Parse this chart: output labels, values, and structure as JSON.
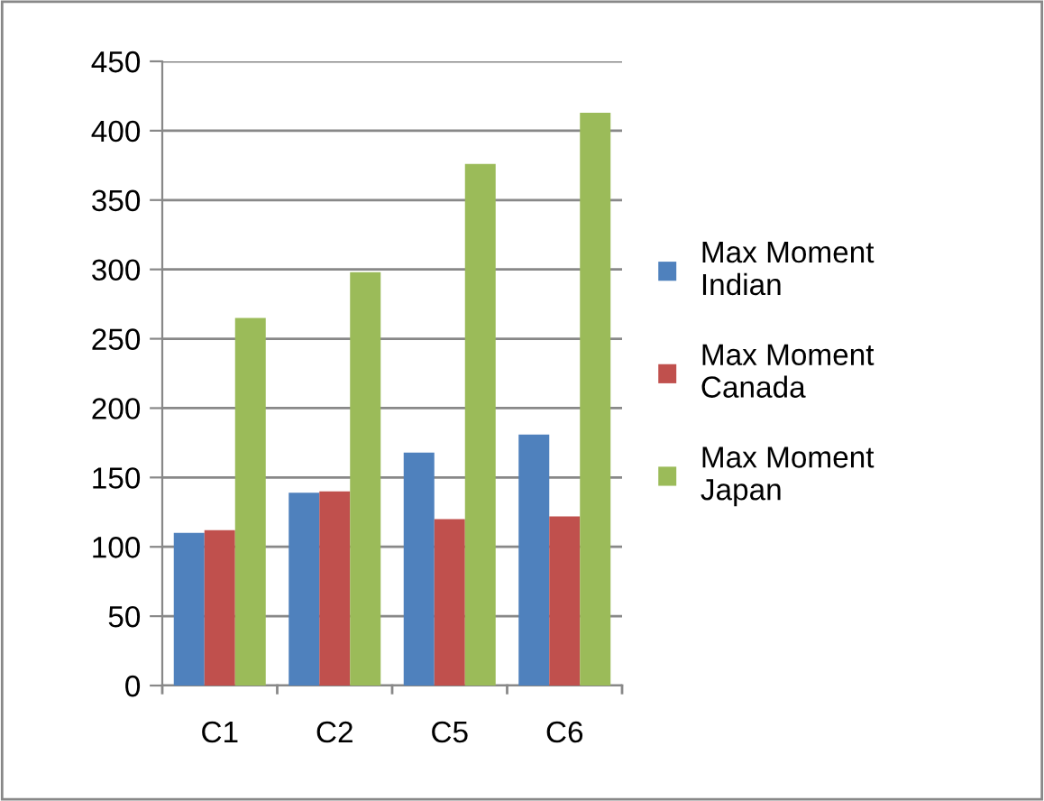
{
  "chart_data": {
    "type": "bar",
    "categories": [
      "C1",
      "C2",
      "C5",
      "C6"
    ],
    "series": [
      {
        "name": "Max Moment Indian",
        "color": "#4f81bd",
        "values": [
          110,
          139,
          168,
          181
        ]
      },
      {
        "name": "Max Moment Canada",
        "color": "#c0504d",
        "values": [
          112,
          140,
          120,
          122
        ]
      },
      {
        "name": "Max Moment Japan",
        "color": "#9bbb59",
        "values": [
          265,
          298,
          376,
          413
        ]
      }
    ],
    "ylim": [
      0,
      450
    ],
    "yticks": [
      0,
      50,
      100,
      150,
      200,
      250,
      300,
      350,
      400,
      450
    ],
    "grid": "y",
    "legend": "right"
  }
}
